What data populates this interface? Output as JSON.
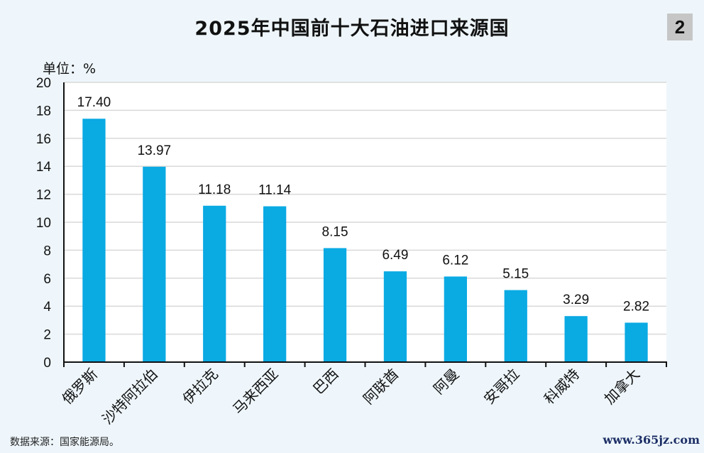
{
  "badge": "2",
  "source": "数据来源：国家能源局。",
  "watermark": "www.365jz.com",
  "colors": {
    "bar": "#0aaae3",
    "grid": "#d9d9d9",
    "axis": "#111111",
    "plot_bg": "#ffffff"
  },
  "chart_data": {
    "type": "bar",
    "title": "2025年中国前十大石油进口来源国",
    "unit_label": "单位：%",
    "xlabel": "",
    "ylabel": "",
    "categories": [
      "俄罗斯",
      "沙特阿拉伯",
      "伊拉克",
      "马来西亚",
      "巴西",
      "阿联酋",
      "阿曼",
      "安哥拉",
      "科威特",
      "加拿大"
    ],
    "values": [
      17.4,
      13.97,
      11.18,
      11.14,
      8.15,
      6.49,
      6.12,
      5.15,
      3.29,
      2.82
    ],
    "value_labels": [
      "17.40",
      "13.97",
      "11.18",
      "11.14",
      "8.15",
      "6.49",
      "6.12",
      "5.15",
      "3.29",
      "2.82"
    ],
    "ylim": [
      0,
      20
    ],
    "yticks": [
      0,
      2,
      4,
      6,
      8,
      10,
      12,
      14,
      16,
      18,
      20
    ],
    "grid": true,
    "legend": "none"
  }
}
